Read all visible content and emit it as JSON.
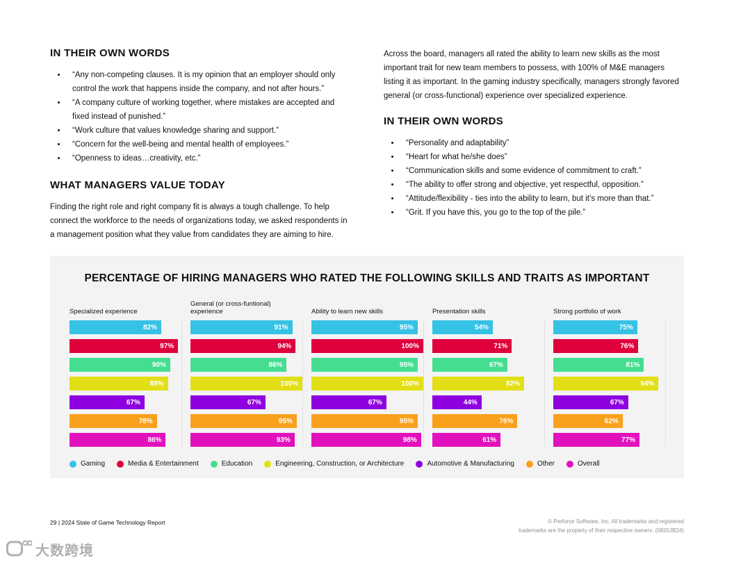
{
  "page": {
    "left_column": {
      "section1_title": "IN THEIR OWN WORDS",
      "section1_bullets": [
        "“Any non-competing clauses. It is my opinion that an employer should only control the work that happens inside the company, and not after hours.”",
        "“A company culture of working together, where mistakes are accepted and fixed instead of punished.”",
        "“Work culture that values knowledge sharing and support.”",
        "“Concern for the well-being and mental health of employees.”",
        "“Openness to ideas…creativity, etc.”"
      ],
      "section2_title": "WHAT MANAGERS VALUE TODAY",
      "section2_paragraph": "Finding the right role and right company fit is always a tough challenge. To help connect the workforce to the needs of organizations today, we asked respondents in a management position what they value from candidates they are aiming to hire."
    },
    "right_column": {
      "intro_paragraph": "Across the board, managers all rated the ability to learn new skills as the most important trait for new team members to possess, with 100% of M&E managers listing it as important. In the gaming industry specifically, managers strongly favored general (or cross-functional) experience over specialized experience.",
      "section_title": "IN THEIR OWN WORDS",
      "bullets": [
        "“Personality and adaptability”",
        "“Heart for what he/she does”",
        "“Communication skills and some evidence of commitment to craft.”",
        "“The ability to offer strong and objective, yet respectful, opposition.”",
        "“Attitude/flexibility - ties into the ability to learn, but it’s more than that.”",
        "“Grit. If you have this, you go to the top of the pile.”"
      ]
    },
    "footer": {
      "left": "29  | 2024 State of Game Technology Report",
      "right_line1": "© Perforce Software, Inc. All trademarks and registered",
      "right_line2": "trademarks are the property of their respective owners.  (0820JB24)"
    },
    "watermark": "大数跨境"
  },
  "chart_data": {
    "type": "bar",
    "orientation": "horizontal",
    "title": "PERCENTAGE OF HIRING MANAGERS WHO RATED THE FOLLOWING SKILLS AND TRAITS AS IMPORTANT",
    "value_range": [
      0,
      100
    ],
    "value_suffix": "%",
    "legend_position": "bottom",
    "series": [
      {
        "name": "Gaming",
        "color": "#35c2e5"
      },
      {
        "name": "Media & Entertainment",
        "color": "#e0003c"
      },
      {
        "name": "Education",
        "color": "#45de91"
      },
      {
        "name": "Engineering, Construction, or Architecture",
        "color": "#e3df16"
      },
      {
        "name": "Automotive & Manufacturing",
        "color": "#8f00e0"
      },
      {
        "name": "Other",
        "color": "#f9a11c"
      },
      {
        "name": "Overall",
        "color": "#e211be"
      }
    ],
    "groups": [
      {
        "label": "Specialized experience",
        "values": [
          82,
          97,
          90,
          88,
          67,
          78,
          86
        ]
      },
      {
        "label": "General (or cross-funtional) experience",
        "values": [
          91,
          94,
          86,
          100,
          67,
          95,
          93
        ]
      },
      {
        "label": "Ability to learn new skills",
        "values": [
          95,
          100,
          95,
          100,
          67,
          95,
          98
        ]
      },
      {
        "label": "Presentation skills",
        "values": [
          54,
          71,
          67,
          82,
          44,
          76,
          61
        ]
      },
      {
        "label": "Strong portfolio of work",
        "values": [
          75,
          76,
          81,
          94,
          67,
          62,
          77
        ]
      }
    ]
  }
}
